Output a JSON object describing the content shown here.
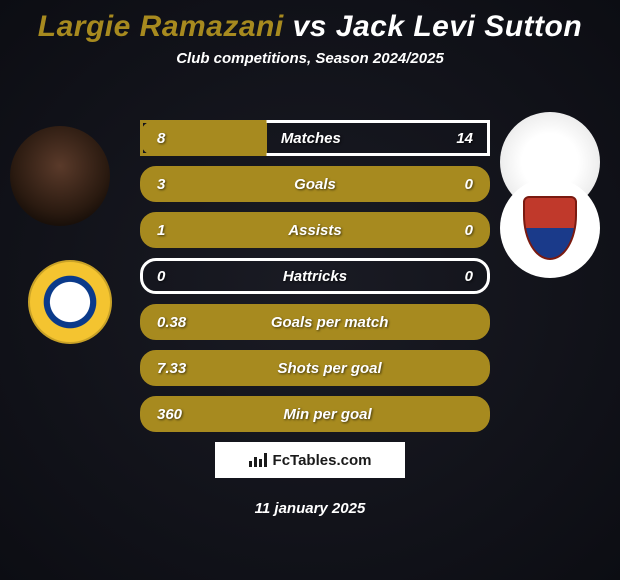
{
  "title": {
    "player1_name": "Largie Ramazani",
    "player1_color": "#a78a1f",
    "vs_text": "vs",
    "player2_name": "Jack Levi Sutton",
    "player2_color": "#ffffff"
  },
  "subtitle": "Club competitions, Season 2024/2025",
  "stats": {
    "border_color_p1": "#a78a1f",
    "border_color_p2": "#ffffff",
    "fill_color_p1": "#a78a1f",
    "rows": [
      {
        "label": "Matches",
        "left": "8",
        "right": "14",
        "p1_fill_pct": 36
      },
      {
        "label": "Goals",
        "left": "3",
        "right": "0",
        "p1_fill_pct": 100
      },
      {
        "label": "Assists",
        "left": "1",
        "right": "0",
        "p1_fill_pct": 100
      },
      {
        "label": "Hattricks",
        "left": "0",
        "right": "0",
        "p1_fill_pct": 0
      },
      {
        "label": "Goals per match",
        "left": "0.38",
        "right": "",
        "p1_fill_pct": 100
      },
      {
        "label": "Shots per goal",
        "left": "7.33",
        "right": "",
        "p1_fill_pct": 100
      },
      {
        "label": "Min per goal",
        "left": "360",
        "right": "",
        "p1_fill_pct": 100
      }
    ]
  },
  "branding": {
    "text": "FcTables.com"
  },
  "date_text": "11 january 2025",
  "colors": {
    "background_center": "#1a1b24",
    "background_edge": "#0c0d13",
    "text": "#ffffff"
  }
}
